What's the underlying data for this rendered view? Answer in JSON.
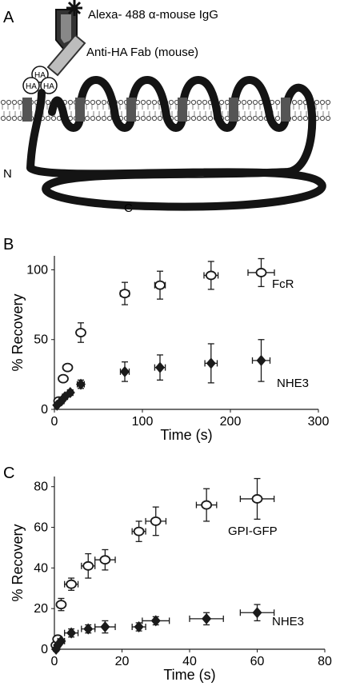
{
  "diagram": {
    "panel": "A",
    "antibody_label": "Alexa- 488 α-mouse IgG",
    "fab_label": "Anti-HA Fab (mouse)",
    "tag": "HA",
    "n_terminus": "N",
    "c_terminus": "C"
  },
  "chart_data": [
    {
      "panel": "B",
      "type": "scatter",
      "xlabel": "Time (s)",
      "ylabel": "% Recovery",
      "xlim": [
        0,
        300
      ],
      "ylim": [
        0,
        110
      ],
      "xticks": [
        0,
        100,
        200,
        300
      ],
      "yticks": [
        0,
        50,
        100
      ],
      "grid": false,
      "series": [
        {
          "name": "FcR",
          "marker": "open-circle",
          "color": "#1a1a1a",
          "points": [
            {
              "x": 5,
              "y": 6,
              "xerr": 3,
              "yerr": 2
            },
            {
              "x": 10,
              "y": 22,
              "xerr": 3,
              "yerr": 2
            },
            {
              "x": 15,
              "y": 30,
              "xerr": 3,
              "yerr": 2
            },
            {
              "x": 30,
              "y": 55,
              "xerr": 3,
              "yerr": 7
            },
            {
              "x": 80,
              "y": 83,
              "xerr": 5,
              "yerr": 8
            },
            {
              "x": 120,
              "y": 89,
              "xerr": 6,
              "yerr": 10
            },
            {
              "x": 178,
              "y": 96,
              "xerr": 8,
              "yerr": 10
            },
            {
              "x": 235,
              "y": 98,
              "xerr": 15,
              "yerr": 10
            }
          ]
        },
        {
          "name": "NHE3",
          "marker": "filled-diamond",
          "color": "#1a1a1a",
          "points": [
            {
              "x": 3,
              "y": 3,
              "xerr": 2,
              "yerr": 1
            },
            {
              "x": 8,
              "y": 6,
              "xerr": 3,
              "yerr": 1
            },
            {
              "x": 12,
              "y": 9,
              "xerr": 3,
              "yerr": 1
            },
            {
              "x": 18,
              "y": 12,
              "xerr": 3,
              "yerr": 2
            },
            {
              "x": 30,
              "y": 18,
              "xerr": 4,
              "yerr": 3
            },
            {
              "x": 80,
              "y": 27,
              "xerr": 5,
              "yerr": 7
            },
            {
              "x": 120,
              "y": 30,
              "xerr": 6,
              "yerr": 9
            },
            {
              "x": 178,
              "y": 33,
              "xerr": 7,
              "yerr": 14
            },
            {
              "x": 235,
              "y": 35,
              "xerr": 10,
              "yerr": 15
            }
          ]
        }
      ]
    },
    {
      "panel": "C",
      "type": "scatter",
      "xlabel": "Time (s)",
      "ylabel": "% Recovery",
      "xlim": [
        0,
        80
      ],
      "ylim": [
        0,
        85
      ],
      "xticks": [
        0,
        20,
        40,
        60,
        80
      ],
      "yticks": [
        0,
        20,
        40,
        60,
        80
      ],
      "grid": false,
      "series": [
        {
          "name": "GPI-GFP",
          "marker": "open-circle",
          "color": "#1a1a1a",
          "points": [
            {
              "x": 0.5,
              "y": 2,
              "xerr": 0.5,
              "yerr": 1
            },
            {
              "x": 1,
              "y": 5,
              "xerr": 1,
              "yerr": 1
            },
            {
              "x": 2,
              "y": 22,
              "xerr": 1,
              "yerr": 3
            },
            {
              "x": 5,
              "y": 32,
              "xerr": 2,
              "yerr": 3
            },
            {
              "x": 10,
              "y": 41,
              "xerr": 2,
              "yerr": 6
            },
            {
              "x": 15,
              "y": 44,
              "xerr": 3,
              "yerr": 5
            },
            {
              "x": 25,
              "y": 58,
              "xerr": 2,
              "yerr": 5
            },
            {
              "x": 30,
              "y": 63,
              "xerr": 3,
              "yerr": 7
            },
            {
              "x": 45,
              "y": 71,
              "xerr": 3,
              "yerr": 8
            },
            {
              "x": 60,
              "y": 74,
              "xerr": 5,
              "yerr": 10
            }
          ]
        },
        {
          "name": "NHE3",
          "marker": "filled-diamond",
          "color": "#1a1a1a",
          "points": [
            {
              "x": 0.5,
              "y": 0,
              "xerr": 0.5,
              "yerr": 1
            },
            {
              "x": 1,
              "y": 2,
              "xerr": 0.5,
              "yerr": 1
            },
            {
              "x": 2,
              "y": 4,
              "xerr": 1,
              "yerr": 1
            },
            {
              "x": 5,
              "y": 8,
              "xerr": 2,
              "yerr": 2
            },
            {
              "x": 10,
              "y": 10,
              "xerr": 2,
              "yerr": 2
            },
            {
              "x": 15,
              "y": 11,
              "xerr": 3,
              "yerr": 3
            },
            {
              "x": 25,
              "y": 11,
              "xerr": 2,
              "yerr": 2
            },
            {
              "x": 30,
              "y": 14,
              "xerr": 4,
              "yerr": 2
            },
            {
              "x": 45,
              "y": 15,
              "xerr": 5,
              "yerr": 3
            },
            {
              "x": 60,
              "y": 18,
              "xerr": 5,
              "yerr": 4
            }
          ]
        }
      ]
    }
  ]
}
